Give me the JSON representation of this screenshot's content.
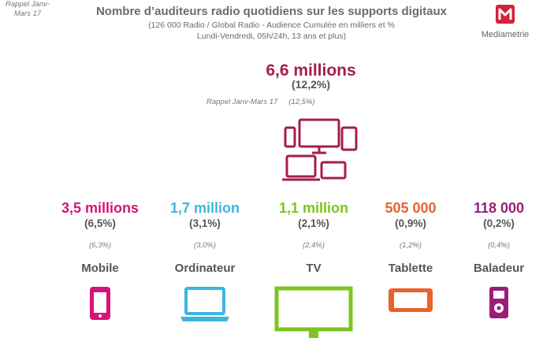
{
  "header": {
    "title": "Nombre d’auditeurs radio quotidiens sur les supports digitaux",
    "subtitle_line1": "(126 000 Radio / Global Radio - Audience Cumulée en milliers et %",
    "subtitle_line2": "Lundi-Vendredi, 05h/24h, 13 ans et plus)"
  },
  "logo": {
    "letter": "M",
    "name": "Mediametrie",
    "color": "#d4213d"
  },
  "total": {
    "value_label": "6,6 millions",
    "pct_label": "(12,2%)",
    "rappel_label": "Rappel Janv-Mars 17",
    "rappel_pct": "(12,5%)",
    "color": "#a51e4a"
  },
  "rappel_row_label": "Rappel Janv-Mars 17",
  "chart_data": {
    "type": "table",
    "title": "Nombre d’auditeurs radio quotidiens sur les supports digitaux",
    "total": {
      "value": 6.6,
      "unit": "millions",
      "pct": 12.2,
      "rappel_pct": 12.5
    },
    "categories": [
      "Mobile",
      "Ordinateur",
      "TV",
      "Tablette",
      "Baladeur"
    ],
    "values_label": [
      "3,5 millions",
      "1,7 million",
      "1,1 million",
      "505 000",
      "118 000"
    ],
    "values": [
      3500000,
      1700000,
      1100000,
      505000,
      118000
    ],
    "pct_label": [
      "(6,5%)",
      "(3,1%)",
      "(2,1%)",
      "(0,9%)",
      "(0,2%)"
    ],
    "pct": [
      6.5,
      3.1,
      2.1,
      0.9,
      0.2
    ],
    "rappel_label": [
      "(6,3%)",
      "(3,0%)",
      "(2,4%)",
      "(1,2%)",
      "(0,4%)"
    ],
    "rappel": [
      6.3,
      3.0,
      2.4,
      1.2,
      0.4
    ],
    "colors": [
      "#d4147a",
      "#3cb6e0",
      "#7dc420",
      "#e9622b",
      "#9a1e78"
    ],
    "icons": [
      "smartphone-icon",
      "laptop-icon",
      "tv-icon",
      "tablet-icon",
      "music-player-icon"
    ]
  }
}
